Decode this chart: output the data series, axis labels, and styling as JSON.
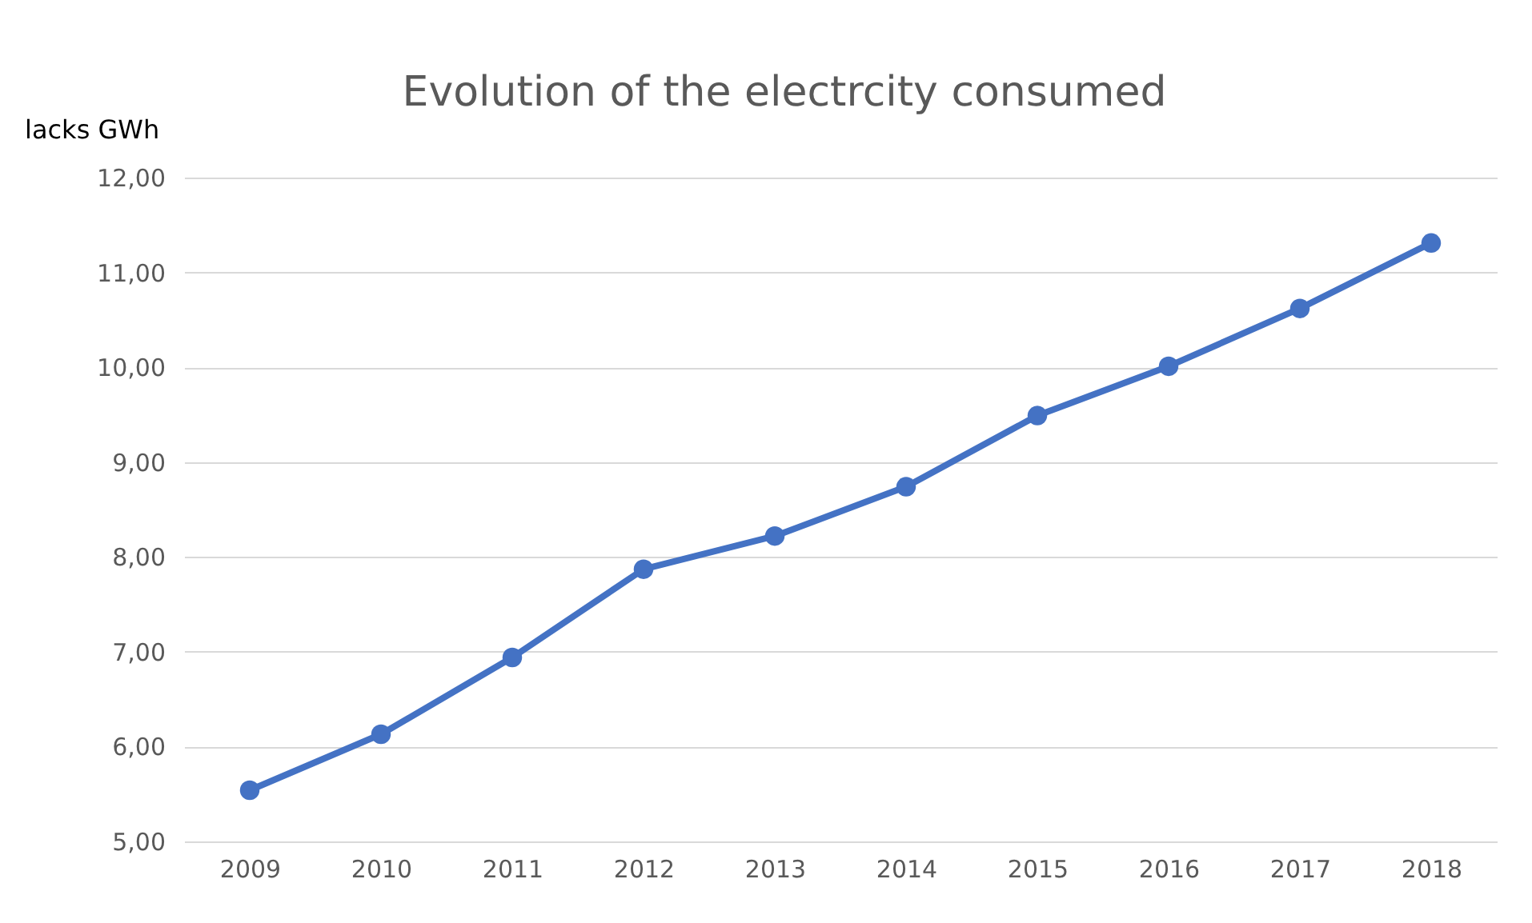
{
  "chart_data": {
    "type": "line",
    "title": "Evolution of the electrcity consumed",
    "ylabel": "lacks GWh",
    "categories": [
      "2009",
      "2010",
      "2011",
      "2012",
      "2013",
      "2014",
      "2015",
      "2016",
      "2017",
      "2018"
    ],
    "series": [
      {
        "color": "#4472c4",
        "values": [
          5.54,
          6.13,
          6.94,
          7.87,
          8.22,
          8.74,
          9.49,
          10.01,
          10.62,
          11.31
        ]
      }
    ],
    "ylim": [
      5,
      12
    ],
    "yticks": [
      {
        "value": 5,
        "label": "5,00"
      },
      {
        "value": 6,
        "label": "6,00"
      },
      {
        "value": 7,
        "label": "7,00"
      },
      {
        "value": 8,
        "label": "8,00"
      },
      {
        "value": 9,
        "label": "9,00"
      },
      {
        "value": 10,
        "label": "10,00"
      },
      {
        "value": 11,
        "label": "11,00"
      },
      {
        "value": 12,
        "label": "12,00"
      }
    ],
    "grid": "y",
    "marker": "circle",
    "line_style": "solid",
    "legend": false
  }
}
